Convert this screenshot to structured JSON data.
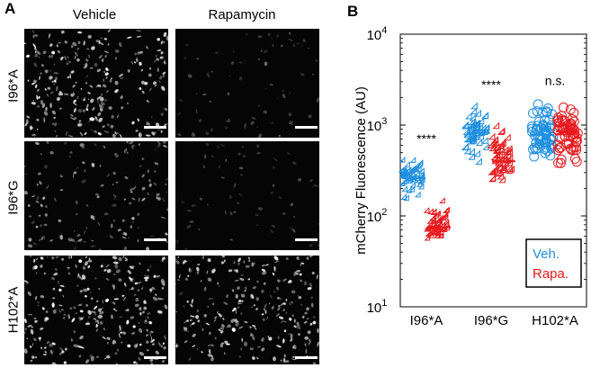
{
  "panel_a": {
    "letter": "A",
    "columns": [
      "Vehicle",
      "Rapamycin"
    ],
    "rows": [
      {
        "label": "I96*A",
        "density": [
          0.9,
          0.12
        ]
      },
      {
        "label": "I96*G",
        "density": [
          0.45,
          0.08
        ]
      },
      {
        "label": "H102*A",
        "density": [
          0.95,
          0.85
        ]
      }
    ]
  },
  "panel_b": {
    "letter": "B"
  },
  "colors": {
    "vehicle": "#1f8fe0",
    "rapamycin": "#e8181c",
    "micro_bg": "#050505"
  },
  "chart_data": {
    "type": "scatter",
    "scale": "log",
    "ylabel": "mCherry Fluorescence (AU)",
    "ylim": [
      10,
      10000
    ],
    "yticks": [
      {
        "value": 10,
        "base": "10",
        "exp": "1"
      },
      {
        "value": 100,
        "base": "10",
        "exp": "2"
      },
      {
        "value": 1000,
        "base": "10",
        "exp": "3"
      },
      {
        "value": 10000,
        "base": "10",
        "exp": "4"
      }
    ],
    "categories": [
      "I96*A",
      "I96*G",
      "H102*A"
    ],
    "markers": [
      "triangle",
      "diamond",
      "circle"
    ],
    "series": [
      {
        "name": "Veh.",
        "color": "#1f8fe0",
        "medians": [
          260,
          820,
          780
        ],
        "lows": [
          130,
          300,
          250
        ],
        "highs": [
          480,
          1900,
          2100
        ]
      },
      {
        "name": "Rapa.",
        "color": "#e8181c",
        "medians": [
          75,
          400,
          850
        ],
        "lows": [
          48,
          130,
          230
        ],
        "highs": [
          160,
          1000,
          2000
        ]
      }
    ],
    "significance": [
      "****",
      "****",
      "n.s."
    ],
    "legend": {
      "placement": "bottom-right",
      "entries": [
        "Veh.",
        "Rapa."
      ]
    },
    "grid": false
  }
}
